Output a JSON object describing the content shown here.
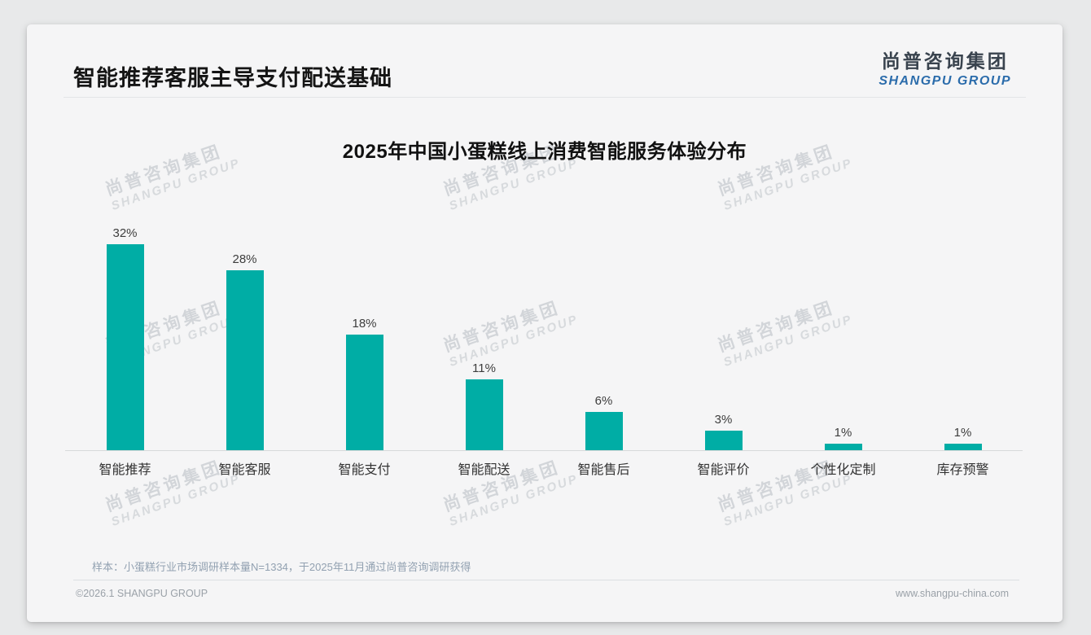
{
  "page": {
    "header": {
      "title": "智能推荐客服主导支付配送基础"
    },
    "logo": {
      "cn": "尚普咨询集团",
      "en": "SHANGPU GROUP"
    },
    "footnote": "样本：小蛋糕行业市场调研样本量N=1334，于2025年11月通过尚普咨询调研获得",
    "footer": {
      "left": "©2026.1 SHANGPU GROUP",
      "right": "www.shangpu-china.com"
    },
    "watermark": {
      "line1": "尚普咨询集团",
      "line2": "SHANGPU GROUP"
    }
  },
  "chart_data": {
    "type": "bar",
    "title": "2025年中国小蛋糕线上消费智能服务体验分布",
    "categories": [
      "智能推荐",
      "智能客服",
      "智能支付",
      "智能配送",
      "智能售后",
      "智能评价",
      "个性化定制",
      "库存预警"
    ],
    "values": [
      32,
      28,
      18,
      11,
      6,
      3,
      1,
      1
    ],
    "value_labels": [
      "32%",
      "28%",
      "18%",
      "11%",
      "6%",
      "3%",
      "1%",
      "1%"
    ],
    "bar_color": "#00ada5",
    "xlabel": "",
    "ylabel": "",
    "ylim": [
      0,
      35
    ],
    "grid": false,
    "legend": false
  }
}
